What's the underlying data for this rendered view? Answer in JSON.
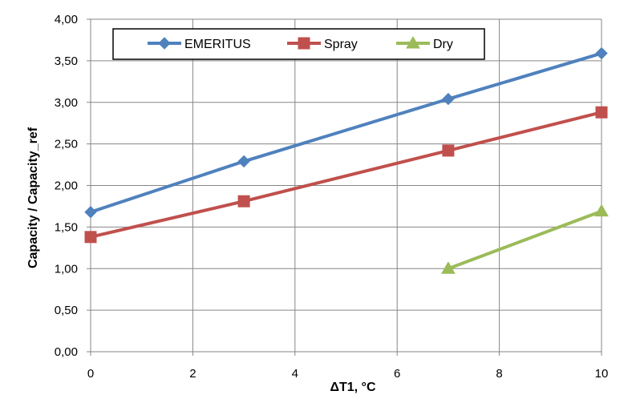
{
  "chart_data": {
    "type": "line",
    "title": "",
    "xlabel": "ΔT1, °C",
    "ylabel": "Capacity / Capacity_ref",
    "xlim": [
      0,
      10
    ],
    "ylim": [
      0,
      4
    ],
    "x_ticks": [
      0,
      2,
      4,
      6,
      8,
      10
    ],
    "x_tick_labels": [
      "0",
      "2",
      "4",
      "6",
      "8",
      "10"
    ],
    "y_ticks": [
      0,
      0.5,
      1,
      1.5,
      2,
      2.5,
      3,
      3.5,
      4
    ],
    "y_tick_labels": [
      "0,00",
      "0,50",
      "1,00",
      "1,50",
      "2,00",
      "2,50",
      "3,00",
      "3,50",
      "4,00"
    ],
    "grid": true,
    "legend_position": "top",
    "series": [
      {
        "name": "EMERITUS",
        "color": "#4F81BD",
        "marker": "diamond",
        "x": [
          0,
          3,
          7,
          10
        ],
        "y": [
          1.68,
          2.29,
          3.04,
          3.59
        ]
      },
      {
        "name": "Spray",
        "color": "#C0504D",
        "marker": "square",
        "x": [
          0,
          3,
          7,
          10
        ],
        "y": [
          1.38,
          1.81,
          2.42,
          2.88
        ]
      },
      {
        "name": "Dry",
        "color": "#9BBB59",
        "marker": "triangle",
        "x": [
          7,
          10
        ],
        "y": [
          1.0,
          1.69
        ]
      }
    ]
  }
}
